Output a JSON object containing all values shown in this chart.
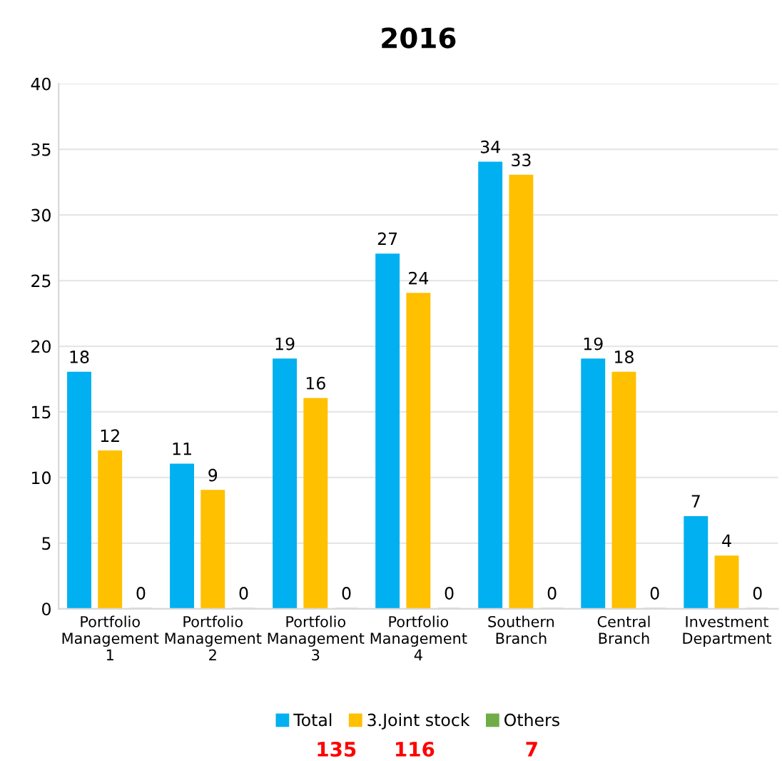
{
  "chart_data": {
    "type": "bar",
    "title": "2016",
    "categories": [
      "Portfolio\nManagement\n1",
      "Portfolio\nManagement\n2",
      "Portfolio\nManagement\n3",
      "Portfolio\nManagement\n4",
      "Southern\nBranch",
      "Central\nBranch",
      "Investment\nDepartment"
    ],
    "series": [
      {
        "name": "Total",
        "color": "#00b0f0",
        "values": [
          18,
          11,
          19,
          27,
          34,
          19,
          7
        ]
      },
      {
        "name": "3.Joint stock",
        "color": "#ffc000",
        "values": [
          12,
          9,
          16,
          24,
          33,
          18,
          4
        ]
      },
      {
        "name": "Others",
        "color": "#70ad47",
        "values": [
          0,
          0,
          0,
          0,
          0,
          0,
          0
        ]
      }
    ],
    "ylim": [
      0,
      40
    ],
    "yticks": [
      0,
      5,
      10,
      15,
      20,
      25,
      30,
      35,
      40
    ],
    "grid": "y",
    "legend": "bottom",
    "data_labels": true,
    "annotations": [
      "135",
      "116",
      "7"
    ]
  }
}
